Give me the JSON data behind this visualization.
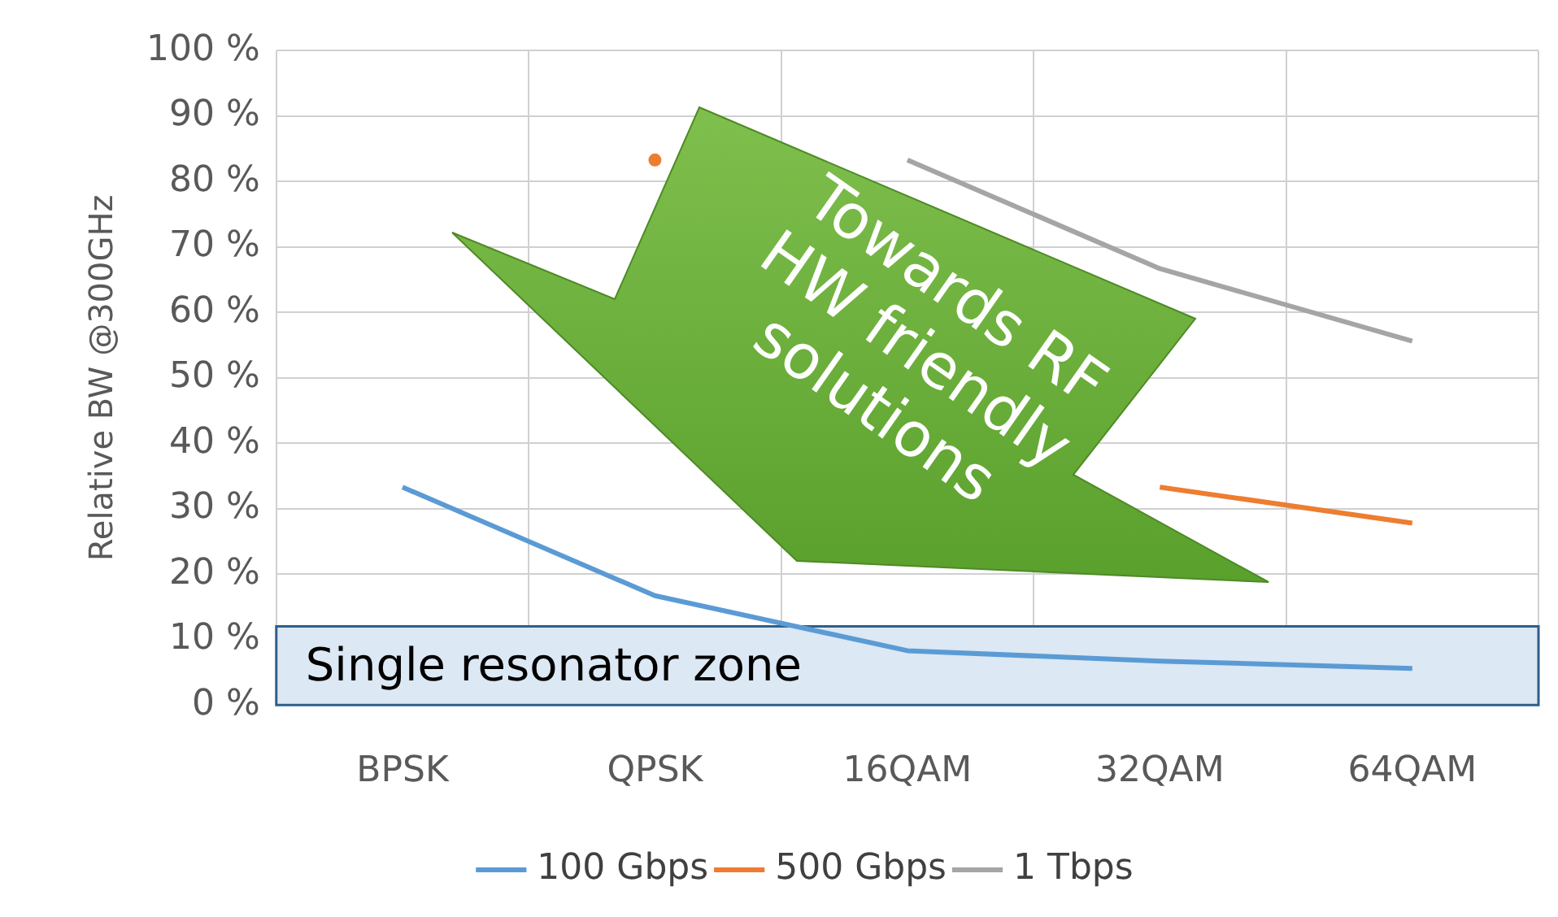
{
  "chart_data": {
    "type": "line",
    "ylabel": "Relative BW @300GHz",
    "categories": [
      "BPSK",
      "QPSK",
      "16QAM",
      "32QAM",
      "64QAM"
    ],
    "series": [
      {
        "name": "100 Gbps",
        "color": "#5b9bd5",
        "values": [
          33.3,
          16.7,
          8.3,
          6.7,
          5.6
        ]
      },
      {
        "name": "500 Gbps",
        "color": "#ed7d31",
        "values": [
          null,
          83.3,
          null,
          33.3,
          27.8
        ]
      },
      {
        "name": "1 Tbps",
        "color": "#a5a5a5",
        "values": [
          null,
          null,
          83.3,
          66.7,
          55.6
        ]
      }
    ],
    "ylim": [
      0,
      100
    ],
    "yticks": [
      {
        "value": 0,
        "label": "0 %"
      },
      {
        "value": 10,
        "label": "10 %"
      },
      {
        "value": 20,
        "label": "20 %"
      },
      {
        "value": 30,
        "label": "30 %"
      },
      {
        "value": 40,
        "label": "40 %"
      },
      {
        "value": 50,
        "label": "50 %"
      },
      {
        "value": 60,
        "label": "60 %"
      },
      {
        "value": 70,
        "label": "70 %"
      },
      {
        "value": 80,
        "label": "80 %"
      },
      {
        "value": 90,
        "label": "90 %"
      },
      {
        "value": 100,
        "label": "100 %"
      }
    ],
    "bands": [
      {
        "axis": "y",
        "from": 0,
        "to": 12,
        "label": "Single resonator zone",
        "color": "#dce8f4"
      }
    ],
    "annotations": [
      "Towards RF HW friendly solutions"
    ],
    "grid": true,
    "legend": "bottom",
    "marker": "none",
    "line_style": "solid"
  }
}
